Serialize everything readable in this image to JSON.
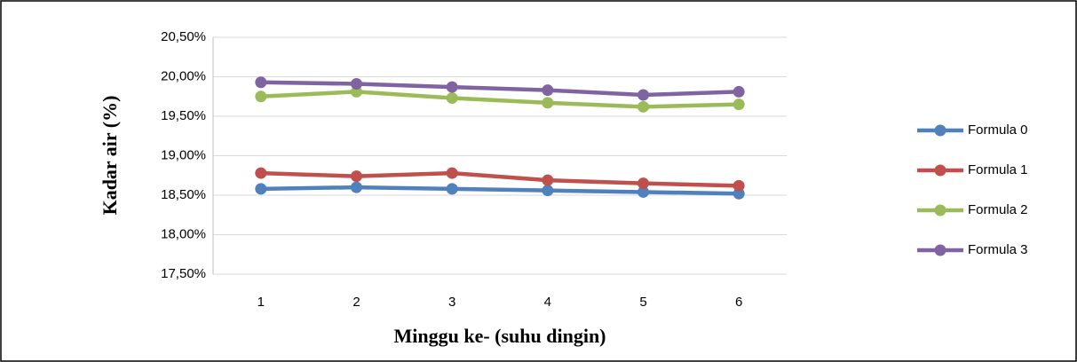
{
  "chart_data": {
    "type": "line",
    "x_label": "Minggu ke- (suhu dingin)",
    "y_label": "Kadar air (%)",
    "categories": [
      "1",
      "2",
      "3",
      "4",
      "5",
      "6"
    ],
    "series": [
      {
        "name": "Formula 0",
        "color": "#4f81bd",
        "values": [
          18.58,
          18.6,
          18.58,
          18.56,
          18.54,
          18.52
        ]
      },
      {
        "name": "Formula 1",
        "color": "#c0504d",
        "values": [
          18.78,
          18.74,
          18.78,
          18.69,
          18.65,
          18.62
        ]
      },
      {
        "name": "Formula 2",
        "color": "#9bbb59",
        "values": [
          19.75,
          19.81,
          19.73,
          19.67,
          19.62,
          19.65
        ]
      },
      {
        "name": "Formula 3",
        "color": "#8064a2",
        "values": [
          19.93,
          19.91,
          19.87,
          19.83,
          19.77,
          19.81
        ]
      }
    ],
    "ylim": [
      17.5,
      20.5
    ],
    "yticks": [
      {
        "value": 17.5,
        "label": "17,50%"
      },
      {
        "value": 18.0,
        "label": "18,00%"
      },
      {
        "value": 18.5,
        "label": "18,50%"
      },
      {
        "value": 19.0,
        "label": "19,00%"
      },
      {
        "value": 19.5,
        "label": "19,50%"
      },
      {
        "value": 20.0,
        "label": "20,00%"
      },
      {
        "value": 20.5,
        "label": "20,50%"
      }
    ],
    "grid": true,
    "legend": "right"
  }
}
